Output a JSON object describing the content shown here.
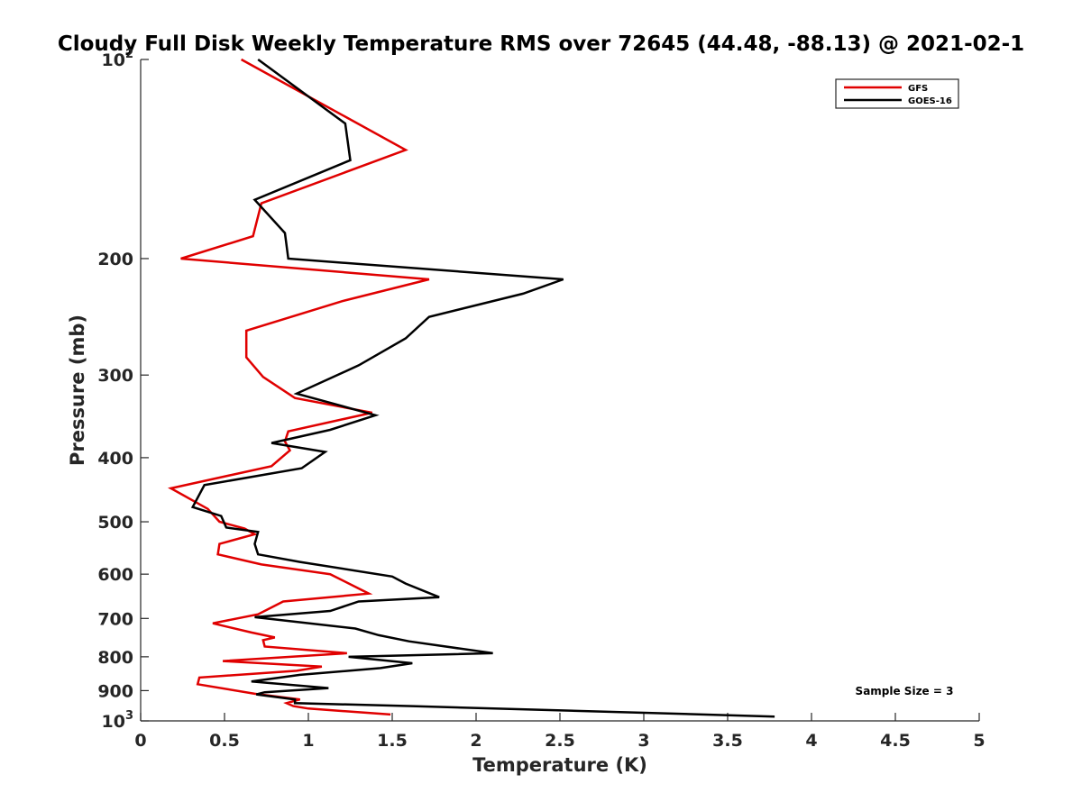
{
  "chart_data": {
    "type": "line",
    "title": "Cloudy Full Disk Weekly Temperature RMS over 72645 (44.48, -88.13) @ 2021-02-1",
    "xlabel": "Temperature (K)",
    "ylabel": "Pressure (mb)",
    "xlim": [
      0,
      5
    ],
    "ylim": [
      100,
      1000
    ],
    "y_scale": "log",
    "y_reversed": true,
    "grid": false,
    "legend_placement": "top-right",
    "x_ticks": [
      "0",
      "0.5",
      "1",
      "1.5",
      "2",
      "2.5",
      "3",
      "3.5",
      "4",
      "4.5",
      "5"
    ],
    "x_tick_values": [
      0,
      0.5,
      1,
      1.5,
      2,
      2.5,
      3,
      3.5,
      4,
      4.5,
      5
    ],
    "y_ticks": [
      {
        "value": 100,
        "base": "10",
        "exp": "2"
      },
      {
        "value": 200,
        "label": "200"
      },
      {
        "value": 300,
        "label": "300"
      },
      {
        "value": 400,
        "label": "400"
      },
      {
        "value": 500,
        "label": "500"
      },
      {
        "value": 600,
        "label": "600"
      },
      {
        "value": 700,
        "label": "700"
      },
      {
        "value": 800,
        "label": "800"
      },
      {
        "value": 900,
        "label": "900"
      },
      {
        "value": 1000,
        "base": "10",
        "exp": "3"
      }
    ],
    "series": [
      {
        "name": "GFS",
        "color": "#e00000",
        "points": [
          [
            0.6,
            100
          ],
          [
            1.58,
            137
          ],
          [
            0.72,
            165
          ],
          [
            0.67,
            185
          ],
          [
            0.24,
            200
          ],
          [
            1.72,
            215
          ],
          [
            1.2,
            232
          ],
          [
            0.63,
            257
          ],
          [
            0.63,
            282
          ],
          [
            0.73,
            302
          ],
          [
            0.92,
            325
          ],
          [
            1.38,
            342
          ],
          [
            0.88,
            365
          ],
          [
            0.86,
            378
          ],
          [
            0.89,
            390
          ],
          [
            0.78,
            412
          ],
          [
            0.18,
            445
          ],
          [
            0.4,
            478
          ],
          [
            0.47,
            500
          ],
          [
            0.62,
            512
          ],
          [
            0.68,
            522
          ],
          [
            0.47,
            540
          ],
          [
            0.46,
            560
          ],
          [
            0.72,
            580
          ],
          [
            1.13,
            600
          ],
          [
            1.36,
            642
          ],
          [
            0.85,
            660
          ],
          [
            0.7,
            690
          ],
          [
            0.43,
            712
          ],
          [
            0.66,
            735
          ],
          [
            0.8,
            748
          ],
          [
            0.73,
            755
          ],
          [
            0.74,
            772
          ],
          [
            1.23,
            790
          ],
          [
            0.49,
            812
          ],
          [
            1.08,
            828
          ],
          [
            0.93,
            840
          ],
          [
            0.35,
            860
          ],
          [
            0.34,
            880
          ],
          [
            0.68,
            910
          ],
          [
            0.95,
            928
          ],
          [
            0.87,
            940
          ],
          [
            0.91,
            950
          ],
          [
            1.0,
            958
          ],
          [
            1.49,
            978
          ]
        ]
      },
      {
        "name": "GOES-16",
        "color": "#000000",
        "points": [
          [
            0.7,
            100
          ],
          [
            1.22,
            125
          ],
          [
            1.25,
            142
          ],
          [
            0.68,
            163
          ],
          [
            0.86,
            183
          ],
          [
            0.88,
            200
          ],
          [
            2.52,
            215
          ],
          [
            2.28,
            226
          ],
          [
            1.72,
            245
          ],
          [
            1.58,
            264
          ],
          [
            1.3,
            290
          ],
          [
            0.93,
            320
          ],
          [
            1.4,
            345
          ],
          [
            1.13,
            363
          ],
          [
            0.78,
            380
          ],
          [
            1.1,
            392
          ],
          [
            0.96,
            415
          ],
          [
            0.38,
            440
          ],
          [
            0.31,
            475
          ],
          [
            0.48,
            490
          ],
          [
            0.51,
            510
          ],
          [
            0.7,
            518
          ],
          [
            0.68,
            540
          ],
          [
            0.7,
            560
          ],
          [
            0.95,
            575
          ],
          [
            1.5,
            605
          ],
          [
            1.58,
            620
          ],
          [
            1.78,
            650
          ],
          [
            1.3,
            660
          ],
          [
            1.13,
            682
          ],
          [
            0.68,
            697
          ],
          [
            1.28,
            725
          ],
          [
            1.42,
            742
          ],
          [
            1.6,
            758
          ],
          [
            2.1,
            790
          ],
          [
            1.24,
            800
          ],
          [
            1.62,
            818
          ],
          [
            1.43,
            832
          ],
          [
            0.95,
            852
          ],
          [
            0.66,
            872
          ],
          [
            1.12,
            892
          ],
          [
            0.74,
            905
          ],
          [
            0.69,
            912
          ],
          [
            0.92,
            928
          ],
          [
            0.92,
            940
          ],
          [
            1.62,
            950
          ],
          [
            3.78,
            985
          ]
        ]
      }
    ],
    "annotations": [
      {
        "text": "Sample Size = 3",
        "x": 4.3,
        "y": 920
      }
    ]
  }
}
